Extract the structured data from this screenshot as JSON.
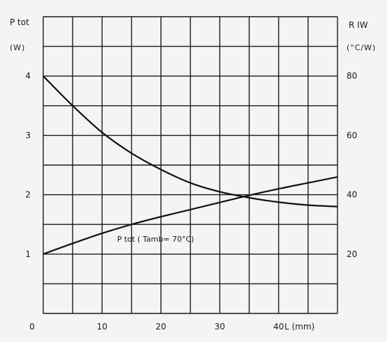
{
  "chart_data": {
    "type": "line",
    "xlabel": "L (mm)",
    "left_axis": {
      "label": "P tot",
      "unit": "(W)",
      "ylim": [
        0,
        5
      ],
      "ticks": [
        "1",
        "2",
        "3",
        "4"
      ]
    },
    "right_axis": {
      "label": "R IW",
      "unit": "(°C/W)",
      "ylim": [
        0,
        100
      ],
      "ticks": [
        "20",
        "40",
        "60",
        "80"
      ]
    },
    "x_ticks": [
      "0",
      "10",
      "20",
      "30",
      "40"
    ],
    "xlim": [
      0,
      50
    ],
    "grid": true,
    "series": [
      {
        "name": "P tot ( Tamb= 70°C)",
        "axis": "left",
        "x": [
          0,
          5,
          10,
          15,
          20,
          25,
          30,
          35,
          40,
          45,
          50
        ],
        "values": [
          1.0,
          1.18,
          1.35,
          1.5,
          1.63,
          1.75,
          1.87,
          1.99,
          2.1,
          2.2,
          2.3
        ]
      },
      {
        "axis": "right",
        "x": [
          0,
          5,
          10,
          15,
          20,
          25,
          30,
          35,
          40,
          45,
          50
        ],
        "values": [
          80,
          70,
          61,
          54,
          48.5,
          44,
          41,
          39,
          37.5,
          36.5,
          36
        ]
      }
    ]
  }
}
